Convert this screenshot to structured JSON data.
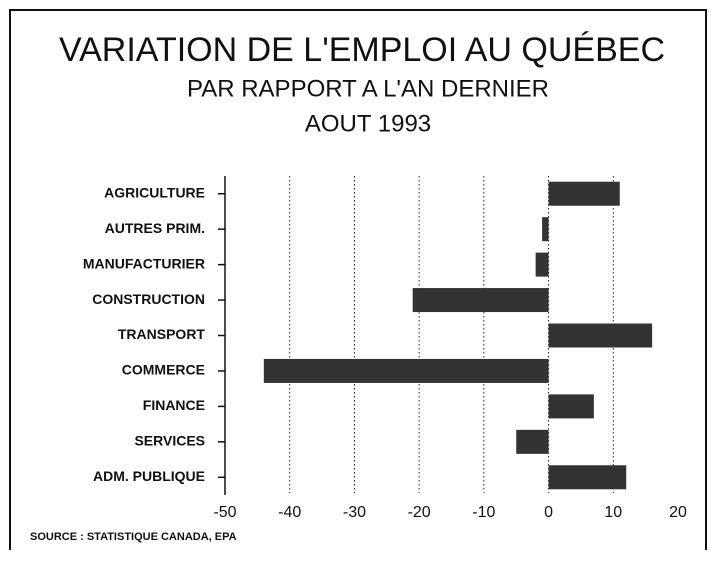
{
  "chart_data": {
    "type": "bar",
    "orientation": "horizontal",
    "title": "VARIATION DE L'EMPLOI AU QUÉBEC",
    "subtitle": "PAR RAPPORT A L'AN DERNIER",
    "subtitle2": "AOUT 1993",
    "source": "SOURCE : STATISTIQUE CANADA, EPA",
    "categories": [
      "AGRICULTURE",
      "AUTRES PRIM.",
      "MANUFACTURIER",
      "CONSTRUCTION",
      "TRANSPORT",
      "COMMERCE",
      "FINANCE",
      "SERVICES",
      "ADM. PUBLIQUE"
    ],
    "values": [
      11,
      -1,
      -2,
      -21,
      16,
      -44,
      7,
      -5,
      12
    ],
    "color": "#333333",
    "xlim": [
      -50,
      20
    ],
    "xticks": [
      -50,
      -40,
      -30,
      -20,
      -10,
      0,
      10,
      20
    ],
    "grid": true
  }
}
